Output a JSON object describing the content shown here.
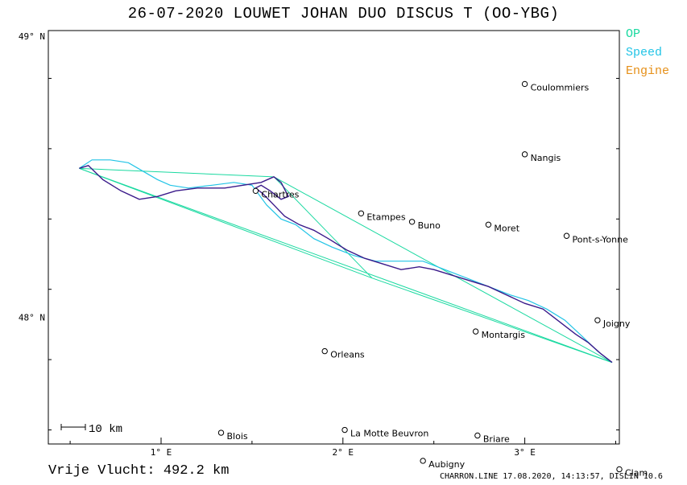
{
  "header": {
    "title": "26-07-2020   LOUWET JOHAN   DUO DISCUS T (OO-YBG)"
  },
  "legend": {
    "items": [
      {
        "label": "OP",
        "color": "#19d9a0"
      },
      {
        "label": "Speed",
        "color": "#22c4e6"
      },
      {
        "label": "Engine",
        "color": "#e69019"
      }
    ]
  },
  "axes": {
    "lat_labels": [
      {
        "label": "49° N",
        "lat": 49.0
      },
      {
        "label": "48° N",
        "lat": 48.0
      }
    ],
    "lon_labels": [
      {
        "label": "1° E",
        "lon": 1.0
      },
      {
        "label": "2° E",
        "lon": 2.0
      },
      {
        "label": "3° E",
        "lon": 3.0
      }
    ],
    "lon_range": [
      0.38,
      3.52
    ],
    "lat_range": [
      47.55,
      49.02
    ]
  },
  "cities": [
    {
      "name": "Coulommiers",
      "lon": 3.0,
      "lat": 48.83
    },
    {
      "name": "Nangis",
      "lon": 3.0,
      "lat": 48.58
    },
    {
      "name": "Chartres",
      "lon": 1.52,
      "lat": 48.45
    },
    {
      "name": "Etampes",
      "lon": 2.1,
      "lat": 48.37
    },
    {
      "name": "Buno",
      "lon": 2.38,
      "lat": 48.34
    },
    {
      "name": "Moret",
      "lon": 2.8,
      "lat": 48.33
    },
    {
      "name": "Pont-s-Yonne",
      "lon": 3.23,
      "lat": 48.29
    },
    {
      "name": "Joigny",
      "lon": 3.4,
      "lat": 47.99
    },
    {
      "name": "Montargis",
      "lon": 2.73,
      "lat": 47.95
    },
    {
      "name": "Orleans",
      "lon": 1.9,
      "lat": 47.88
    },
    {
      "name": "Blois",
      "lon": 1.33,
      "lat": 47.59
    },
    {
      "name": "La Motte Beuvron",
      "lon": 2.01,
      "lat": 47.6
    },
    {
      "name": "Briare",
      "lon": 2.74,
      "lat": 47.58
    },
    {
      "name": "Aubigny",
      "lon": 2.44,
      "lat": 47.49
    },
    {
      "name": "Clamecy",
      "display": "Clam",
      "lon": 3.52,
      "lat": 47.46
    }
  ],
  "scale": {
    "label": "10 km"
  },
  "footer": {
    "distance": "Vrije Vlucht:  492.2 km",
    "software": "CHARRON.LINE 17.08.2020, 14:13:57, DISLIN 10.6"
  },
  "turnpoints": [
    {
      "lon": 0.55,
      "lat": 48.53
    },
    {
      "lon": 1.62,
      "lat": 48.5
    },
    {
      "lon": 2.16,
      "lat": 48.14
    },
    {
      "lon": 3.48,
      "lat": 47.84
    }
  ],
  "track_outbound": [
    [
      3.48,
      47.84
    ],
    [
      3.42,
      47.87
    ],
    [
      3.35,
      47.91
    ],
    [
      3.28,
      47.94
    ],
    [
      3.2,
      47.98
    ],
    [
      3.1,
      48.03
    ],
    [
      3.0,
      48.05
    ],
    [
      2.9,
      48.08
    ],
    [
      2.8,
      48.11
    ],
    [
      2.7,
      48.13
    ],
    [
      2.6,
      48.15
    ],
    [
      2.5,
      48.17
    ],
    [
      2.42,
      48.18
    ],
    [
      2.32,
      48.17
    ],
    [
      2.22,
      48.19
    ],
    [
      2.12,
      48.21
    ],
    [
      2.02,
      48.24
    ],
    [
      1.92,
      48.28
    ],
    [
      1.84,
      48.31
    ],
    [
      1.76,
      48.33
    ],
    [
      1.68,
      48.36
    ],
    [
      1.62,
      48.4
    ],
    [
      1.56,
      48.44
    ],
    [
      1.52,
      48.46
    ],
    [
      1.55,
      48.47
    ],
    [
      1.6,
      48.45
    ],
    [
      1.66,
      48.42
    ],
    [
      1.7,
      48.43
    ],
    [
      1.66,
      48.48
    ],
    [
      1.62,
      48.5
    ],
    [
      1.55,
      48.48
    ],
    [
      1.45,
      48.47
    ],
    [
      1.35,
      48.46
    ],
    [
      1.2,
      48.46
    ],
    [
      1.08,
      48.45
    ],
    [
      0.98,
      48.43
    ],
    [
      0.88,
      48.42
    ],
    [
      0.78,
      48.45
    ],
    [
      0.68,
      48.49
    ],
    [
      0.6,
      48.54
    ],
    [
      0.55,
      48.53
    ]
  ],
  "track_return": [
    [
      0.55,
      48.53
    ],
    [
      0.62,
      48.56
    ],
    [
      0.72,
      48.56
    ],
    [
      0.82,
      48.55
    ],
    [
      0.9,
      48.52
    ],
    [
      0.98,
      48.49
    ],
    [
      1.05,
      48.47
    ],
    [
      1.15,
      48.46
    ],
    [
      1.28,
      48.47
    ],
    [
      1.4,
      48.48
    ],
    [
      1.5,
      48.47
    ],
    [
      1.58,
      48.4
    ],
    [
      1.66,
      48.35
    ],
    [
      1.74,
      48.33
    ],
    [
      1.84,
      48.28
    ],
    [
      1.94,
      48.25
    ],
    [
      2.06,
      48.22
    ],
    [
      2.18,
      48.2
    ],
    [
      2.3,
      48.2
    ],
    [
      2.44,
      48.2
    ],
    [
      2.56,
      48.17
    ],
    [
      2.68,
      48.14
    ],
    [
      2.8,
      48.11
    ],
    [
      2.92,
      48.08
    ],
    [
      3.02,
      48.06
    ],
    [
      3.12,
      48.03
    ],
    [
      3.22,
      47.99
    ],
    [
      3.32,
      47.93
    ],
    [
      3.4,
      47.88
    ],
    [
      3.48,
      47.84
    ]
  ]
}
